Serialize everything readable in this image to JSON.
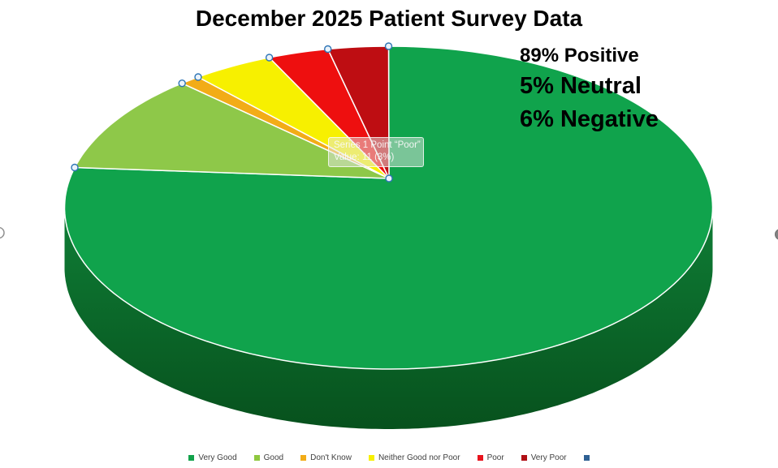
{
  "chart": {
    "title": "December 2025 Patient Survey Data",
    "annotations": [
      "89% Positive",
      "5% Neutral",
      "6% Negative"
    ]
  },
  "tooltip": {
    "line1": "Series 1 Point “Poor”",
    "line2": "Value: 11 (3%)"
  },
  "chart_data": {
    "type": "pie",
    "style": "3d",
    "title": "December 2025 Patient Survey Data",
    "series_name": "Series 1",
    "categories": [
      "Very Good",
      "Good",
      "Don't Know",
      "Neither Good nor Poor",
      "Poor",
      "Very Poor"
    ],
    "values_percent": [
      79,
      10,
      1,
      4,
      3,
      3
    ],
    "slice_colors": [
      "#10A34C",
      "#8EC849",
      "#F2AC17",
      "#F7F000",
      "#EE0F0F",
      "#BE0D12"
    ],
    "selected_point": {
      "series": "Series 1",
      "category": "Poor",
      "value": 11,
      "percent": 3
    },
    "summary": {
      "positive_pct": 89,
      "neutral_pct": 5,
      "negative_pct": 6
    },
    "legend_position": "bottom",
    "legend": [
      {
        "label": "Very Good",
        "color": "#12A24B"
      },
      {
        "label": "Good",
        "color": "#8FC83F"
      },
      {
        "label": "Don't Know",
        "color": "#F2AC17"
      },
      {
        "label": "Neither Good nor Poor",
        "color": "#F7F000"
      },
      {
        "label": "Poor",
        "color": "#E8131D"
      },
      {
        "label": "Very Poor",
        "color": "#B00F15"
      },
      {
        "label": "",
        "color": "#2E6093"
      }
    ],
    "depth_colors": {
      "top": "#0F7E36",
      "bottom": "#07511D"
    },
    "handle_color": "#2E75B6"
  }
}
